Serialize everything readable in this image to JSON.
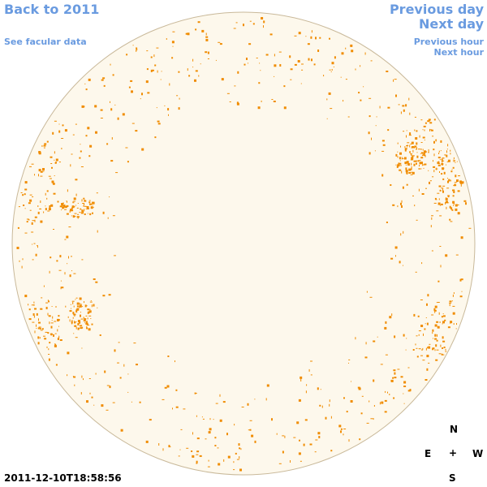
{
  "links": {
    "back_year": "Back to 2011",
    "facular_data": "See facular data",
    "previous_day": "Previous day",
    "next_day": "Next day",
    "previous_hour": "Previous hour",
    "next_hour": "Next hour"
  },
  "timestamp": "2011-12-10T18:58:56",
  "compass": {
    "north": "N",
    "east": "E",
    "center": "+",
    "west": "W",
    "south": "S"
  }
}
